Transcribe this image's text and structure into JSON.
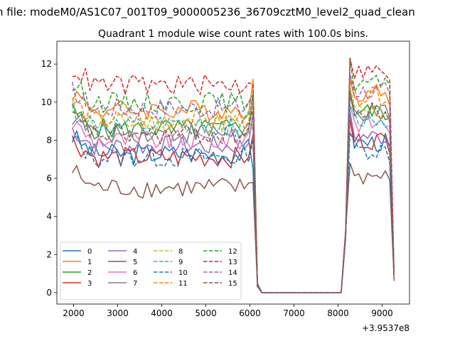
{
  "figure": {
    "suptitle": "n file: modeM0/AS1C07_001T09_9000005236_36709cztM0_level2_quad_clean"
  },
  "chart_data": {
    "type": "line",
    "title": "Quadrant 1 module wise count rates with 100.0s bins.",
    "xlabel": "",
    "ylabel": "",
    "x_offset_label": "+3.9537e8",
    "xlim": [
      1620,
      9620
    ],
    "ylim": [
      -0.6,
      13.2
    ],
    "xticks": [
      2000,
      3000,
      4000,
      5000,
      6000,
      7000,
      8000,
      9000
    ],
    "yticks": [
      0,
      2,
      4,
      6,
      8,
      10,
      12
    ],
    "legend": {
      "location": "lower-left",
      "columns": 4
    },
    "x": {
      "segment1": [
        1970,
        2070,
        2170,
        2270,
        2370,
        2470,
        2570,
        2670,
        2770,
        2870,
        2970,
        3070,
        3170,
        3270,
        3370,
        3470,
        3570,
        3670,
        3770,
        3870,
        3970,
        4070,
        4170,
        4270,
        4370,
        4470,
        4570,
        4670,
        4770,
        4870,
        4970,
        5070,
        5170,
        5270,
        5370,
        5470,
        5570,
        5670,
        5770,
        5870,
        5970,
        6070
      ],
      "gap": [
        6170,
        6270,
        8070
      ],
      "segment2": [
        8170,
        8270,
        8370,
        8470,
        8570,
        8670,
        8770,
        8870,
        8970,
        9070,
        9170,
        9270
      ]
    },
    "series": [
      {
        "name": "0",
        "color": "#1f77b4",
        "dash": "solid",
        "level1": 7.3,
        "peak": 6.4,
        "level2": 7.9,
        "end": 0.8
      },
      {
        "name": "1",
        "color": "#ff7f0e",
        "dash": "solid",
        "level1": 9.6,
        "peak": 11.0,
        "level2": 10.5,
        "end": 0.8
      },
      {
        "name": "2",
        "color": "#2ca02c",
        "dash": "solid",
        "level1": 8.6,
        "peak": 10.1,
        "level2": 9.5,
        "end": 0.9
      },
      {
        "name": "3",
        "color": "#d62728",
        "dash": "solid",
        "level1": 7.1,
        "peak": 7.8,
        "level2": 8.0,
        "end": 0.8
      },
      {
        "name": "4",
        "color": "#9467bd",
        "dash": "solid",
        "level1": 7.7,
        "peak": 9.9,
        "level2": 8.2,
        "end": 0.8
      },
      {
        "name": "5",
        "color": "#8c564b",
        "dash": "solid",
        "level1": 5.5,
        "peak": 6.1,
        "level2": 6.1,
        "end": 0.7
      },
      {
        "name": "6",
        "color": "#e377c2",
        "dash": "solid",
        "level1": 8.0,
        "peak": 8.9,
        "level2": 8.9,
        "end": 0.8
      },
      {
        "name": "7",
        "color": "#7f7f7f",
        "dash": "solid",
        "level1": 8.4,
        "peak": 8.8,
        "level2": 9.4,
        "end": 0.8
      },
      {
        "name": "8",
        "color": "#bcbd22",
        "dash": "dashed",
        "level1": 8.9,
        "peak": 9.8,
        "level2": 9.5,
        "end": 0.8
      },
      {
        "name": "9",
        "color": "#17becf",
        "dash": "dashed",
        "level1": 8.7,
        "peak": 9.6,
        "level2": 9.1,
        "end": 0.7
      },
      {
        "name": "10",
        "color": "#1f77b4",
        "dash": "dashed",
        "level1": 7.1,
        "peak": 7.6,
        "level2": 7.5,
        "end": 0.8
      },
      {
        "name": "11",
        "color": "#ff7f0e",
        "dash": "dashed",
        "level1": 9.1,
        "peak": 10.0,
        "level2": 10.3,
        "end": 0.8
      },
      {
        "name": "12",
        "color": "#2ca02c",
        "dash": "dashed",
        "level1": 10.0,
        "peak": 10.8,
        "level2": 11.0,
        "end": 0.9
      },
      {
        "name": "13",
        "color": "#d62728",
        "dash": "dashed",
        "level1": 10.9,
        "peak": 11.2,
        "level2": 11.6,
        "end": 0.9
      },
      {
        "name": "14",
        "color": "#9467bd",
        "dash": "dashed",
        "level1": 9.7,
        "peak": 10.4,
        "level2": 10.6,
        "end": 0.6
      },
      {
        "name": "15",
        "color": "#8c564b",
        "dash": "dashed",
        "level1": 8.3,
        "peak": 9.7,
        "level2": 9.5,
        "end": 0.7
      }
    ]
  }
}
